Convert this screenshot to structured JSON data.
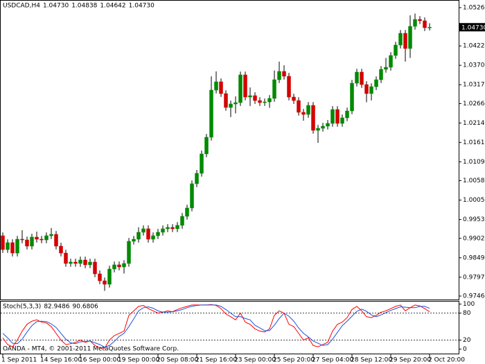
{
  "chart_data": [
    {
      "type": "candlestick",
      "title": "USDCAD,H4",
      "header_values": [
        "1.04730",
        "1.04838",
        "1.04642",
        "1.04730"
      ],
      "copyright": "OANDA - MT4, © 2001-2011 MetaQuotes Software Corp.",
      "up_color": "#008a00",
      "down_color": "#d40000",
      "wick_color": "#000000",
      "categories": [
        "1 Sep 2011",
        null,
        null,
        null,
        null,
        null,
        null,
        null,
        "14 Sep 16:00",
        null,
        null,
        null,
        null,
        null,
        null,
        null,
        "16 Sep 00:00",
        null,
        null,
        null,
        null,
        null,
        null,
        null,
        "19 Sep 00:00",
        null,
        null,
        null,
        null,
        null,
        null,
        null,
        "20 Sep 08:00",
        null,
        null,
        null,
        null,
        null,
        null,
        null,
        "21 Sep 16:00",
        null,
        null,
        null,
        null,
        null,
        null,
        null,
        "23 Sep 00:00",
        null,
        null,
        null,
        null,
        null,
        null,
        null,
        "25 Sep 20:00",
        null,
        null,
        null,
        null,
        null,
        null,
        null,
        "27 Sep 04:00",
        null,
        null,
        null,
        null,
        null,
        null,
        null,
        "28 Sep 12:00",
        null,
        null,
        null,
        null,
        null,
        null,
        null,
        "29 Sep 20:00",
        null,
        null,
        null,
        null,
        null,
        null,
        null,
        "2 Oct 20:00"
      ],
      "open": [
        0.99091,
        0.98716,
        0.98904,
        0.98622,
        0.98997,
        0.98978,
        0.9881,
        0.99054,
        0.98997,
        0.98978,
        0.99091,
        0.99129,
        0.9881,
        0.98622,
        0.98341,
        0.98379,
        0.98341,
        0.98435,
        0.98304,
        0.98379,
        0.9806,
        0.97872,
        0.97779,
        0.98191,
        0.98304,
        0.98247,
        0.98341,
        0.98941,
        0.98997,
        0.99185,
        0.99279,
        0.98997,
        0.99091,
        0.99185,
        0.99279,
        0.99316,
        0.99279,
        0.99372,
        0.99616,
        0.99841,
        1.00497,
        1.00779,
        1.01304,
        1.01754,
        1.03029,
        1.03254,
        1.02935,
        1.0256,
        1.02654,
        1.02691,
        1.03441,
        1.02841,
        1.02879,
        1.02747,
        1.02691,
        1.0271,
        1.02804,
        1.0331,
        1.03535,
        1.03404,
        1.02841,
        1.02747,
        1.02429,
        1.02372,
        1.02616,
        1.01941,
        1.01997,
        1.02054,
        1.02129,
        1.02504,
        1.02129,
        1.02279,
        1.02466,
        1.03216,
        1.03516,
        1.03179,
        1.02935,
        1.03122,
        1.0331,
        1.03591,
        1.03647,
        1.03966,
        1.04247,
        1.04566,
        1.04154,
        1.04754,
        1.04941,
        1.04904,
        1.0473
      ],
      "high": [
        0.99181,
        0.98994,
        0.98994,
        0.99087,
        0.9924,
        0.99068,
        0.99144,
        0.992,
        0.99087,
        0.99181,
        0.993,
        0.99219,
        0.989,
        0.98712,
        0.98469,
        0.98469,
        0.98525,
        0.98525,
        0.98469,
        0.98469,
        0.9815,
        0.97962,
        0.98281,
        0.98394,
        0.98394,
        0.98431,
        0.99031,
        0.99087,
        0.9932,
        0.99369,
        0.99369,
        0.99181,
        0.99275,
        0.99369,
        0.99406,
        0.99406,
        0.99462,
        0.99706,
        0.99931,
        1.00587,
        1.00869,
        1.01394,
        1.01844,
        1.034,
        1.03535,
        1.03344,
        1.03025,
        1.02744,
        1.0286,
        1.03531,
        1.03531,
        1.031,
        1.02969,
        1.02837,
        1.028,
        1.02894,
        1.0356,
        1.038,
        1.037,
        1.03494,
        1.02931,
        1.02837,
        1.02519,
        1.02706,
        1.02706,
        1.02087,
        1.02144,
        1.02219,
        1.02594,
        1.02594,
        1.02369,
        1.02556,
        1.03306,
        1.03606,
        1.03606,
        1.03269,
        1.03212,
        1.034,
        1.03681,
        1.039,
        1.04056,
        1.04337,
        1.04656,
        1.04656,
        1.0505,
        1.051,
        1.05031,
        1.04994,
        1.04838
      ],
      "low": [
        0.98626,
        0.98626,
        0.98532,
        0.98532,
        0.98888,
        0.9872,
        0.9872,
        0.98907,
        0.98888,
        0.98888,
        0.99001,
        0.9872,
        0.98532,
        0.98251,
        0.98251,
        0.98251,
        0.98251,
        0.98214,
        0.98214,
        0.9797,
        0.97782,
        0.976,
        0.97689,
        0.98101,
        0.98157,
        0.9807,
        0.98251,
        0.98851,
        0.98907,
        0.99095,
        0.98907,
        0.98907,
        0.99001,
        0.99095,
        0.99189,
        0.99189,
        0.99189,
        0.99282,
        0.99526,
        0.99751,
        1.00407,
        1.00689,
        1.01214,
        1.01664,
        1.02939,
        1.02845,
        1.0247,
        1.023,
        1.024,
        1.02601,
        1.02751,
        1.026,
        1.02657,
        1.02601,
        1.02601,
        1.0255,
        1.02714,
        1.0322,
        1.03314,
        1.02751,
        1.02657,
        1.02339,
        1.022,
        1.02282,
        1.01851,
        1.016,
        1.01907,
        1.01964,
        1.02039,
        1.02039,
        1.02039,
        1.02189,
        1.02376,
        1.03126,
        1.03089,
        1.027,
        1.0275,
        1.03032,
        1.0322,
        1.03501,
        1.03557,
        1.03876,
        1.04157,
        1.038,
        1.039,
        1.04664,
        1.04814,
        1.04626,
        1.04642
      ],
      "close": [
        0.98716,
        0.98904,
        0.98622,
        0.98997,
        0.98978,
        0.9881,
        0.99054,
        0.98997,
        0.98978,
        0.99091,
        0.99129,
        0.9881,
        0.98622,
        0.98341,
        0.98379,
        0.98341,
        0.98435,
        0.98304,
        0.98379,
        0.9806,
        0.97872,
        0.97779,
        0.98191,
        0.98304,
        0.98247,
        0.98341,
        0.98941,
        0.98997,
        0.99185,
        0.99279,
        0.98997,
        0.99091,
        0.99185,
        0.99279,
        0.99316,
        0.99279,
        0.99372,
        0.99616,
        0.99841,
        1.00497,
        1.00779,
        1.01304,
        1.01754,
        1.03029,
        1.03254,
        1.02935,
        1.0256,
        1.02654,
        1.02691,
        1.03441,
        1.02841,
        1.02879,
        1.02747,
        1.02691,
        1.0271,
        1.02804,
        1.0331,
        1.03535,
        1.03404,
        1.02841,
        1.02747,
        1.02429,
        1.02372,
        1.02616,
        1.01941,
        1.01997,
        1.02054,
        1.02129,
        1.02504,
        1.02129,
        1.02279,
        1.02466,
        1.03216,
        1.03516,
        1.03179,
        1.02935,
        1.03122,
        1.0331,
        1.03591,
        1.03647,
        1.03966,
        1.04247,
        1.04566,
        1.04154,
        1.04754,
        1.04941,
        1.04904,
        1.04716,
        1.0473
      ],
      "ylim": [
        0.97366,
        1.05466
      ],
      "yticks": [
        {
          "value": 1.0526,
          "label": "1.05260"
        },
        {
          "value": 1.04225,
          "label": "1.04225"
        },
        {
          "value": 1.037,
          "label": "1.03700"
        },
        {
          "value": 1.03175,
          "label": "1.03175"
        },
        {
          "value": 1.02665,
          "label": "1.02665"
        },
        {
          "value": 1.0214,
          "label": "1.02140"
        },
        {
          "value": 1.01615,
          "label": "1.01615"
        },
        {
          "value": 1.0109,
          "label": "1.01090"
        },
        {
          "value": 1.0058,
          "label": "1.00580"
        },
        {
          "value": 1.00055,
          "label": "1.00055"
        },
        {
          "value": 0.9953,
          "label": "0.99530"
        },
        {
          "value": 0.9902,
          "label": "0.99020"
        },
        {
          "value": 0.98495,
          "label": "0.98495"
        },
        {
          "value": 0.9797,
          "label": "0.97970"
        },
        {
          "value": 0.9746,
          "label": "0.97460"
        }
      ],
      "last_price": {
        "value": 1.0473,
        "label": "1.04730"
      }
    },
    {
      "type": "line",
      "title": "Stoch(5,3,3)",
      "header_values": [
        "82.9486",
        "90.6806"
      ],
      "series": [
        {
          "color": "#ff0000",
          "values": [
            25,
            10,
            5,
            20,
            40,
            55,
            62,
            65,
            60,
            58,
            50,
            35,
            20,
            10,
            12,
            15,
            20,
            15,
            18,
            8,
            3,
            2,
            20,
            30,
            35,
            40,
            75,
            85,
            95,
            97,
            90,
            85,
            80,
            82,
            85,
            83,
            88,
            92,
            95,
            98,
            98,
            98,
            98,
            99,
            97,
            90,
            78,
            72,
            65,
            80,
            60,
            55,
            45,
            40,
            38,
            45,
            75,
            85,
            80,
            55,
            50,
            35,
            20,
            25,
            8,
            5,
            10,
            15,
            40,
            55,
            60,
            70,
            88,
            95,
            85,
            72,
            70,
            75,
            82,
            85,
            90,
            95,
            98,
            85,
            92,
            98,
            96,
            90,
            82.9486
          ]
        },
        {
          "color": "#2050d8",
          "values": [
            35,
            25,
            13,
            12,
            22,
            38,
            52,
            61,
            62,
            61,
            56,
            48,
            35,
            22,
            14,
            12,
            16,
            17,
            18,
            14,
            10,
            4,
            8,
            17,
            28,
            35,
            50,
            67,
            85,
            92,
            94,
            91,
            85,
            82,
            82,
            83,
            85,
            88,
            92,
            95,
            97,
            98,
            98,
            98,
            98,
            95,
            88,
            80,
            72,
            72,
            68,
            65,
            53,
            47,
            41,
            41,
            53,
            68,
            80,
            73,
            62,
            47,
            35,
            27,
            18,
            13,
            8,
            10,
            22,
            37,
            52,
            62,
            73,
            84,
            89,
            84,
            76,
            72,
            76,
            81,
            86,
            90,
            94,
            93,
            92,
            92,
            95,
            95,
            90.6806
          ]
        }
      ],
      "ylim": [
        -11.625,
        107.125
      ],
      "yticks": [
        100,
        80,
        20,
        0
      ],
      "levels": [
        80,
        20
      ]
    }
  ]
}
